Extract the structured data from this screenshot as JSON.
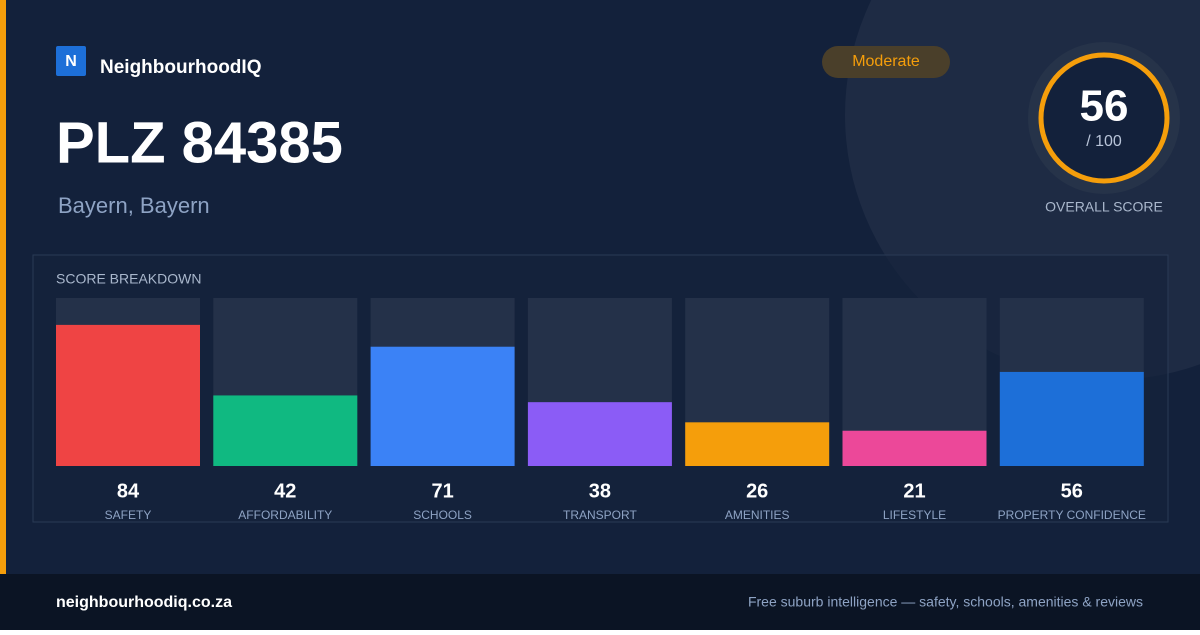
{
  "brand": {
    "logo_letter": "N",
    "name": "NeighbourhoodIQ"
  },
  "title": "PLZ 84385",
  "subtitle": "Bayern, Bayern",
  "badge": "Moderate",
  "score": {
    "value": 56,
    "suffix": "/ 100",
    "label": "OVERALL SCORE"
  },
  "chart_data": {
    "type": "bar",
    "title": "SCORE BREAKDOWN",
    "categories": [
      "SAFETY",
      "AFFORDABILITY",
      "SCHOOLS",
      "TRANSPORT",
      "AMENITIES",
      "LIFESTYLE",
      "PROPERTY CONFIDENCE"
    ],
    "values": [
      84,
      42,
      71,
      38,
      26,
      21,
      56
    ],
    "colors": [
      "#ef4444",
      "#10b981",
      "#3b82f6",
      "#8b5cf6",
      "#f59e0b",
      "#ec4899",
      "#1d6fd8"
    ],
    "ylim": [
      0,
      100
    ]
  },
  "footer": {
    "site": "neighbourhoodiq.co.za",
    "tagline": "Free suburb intelligence — safety, schools, amenities & reviews"
  }
}
